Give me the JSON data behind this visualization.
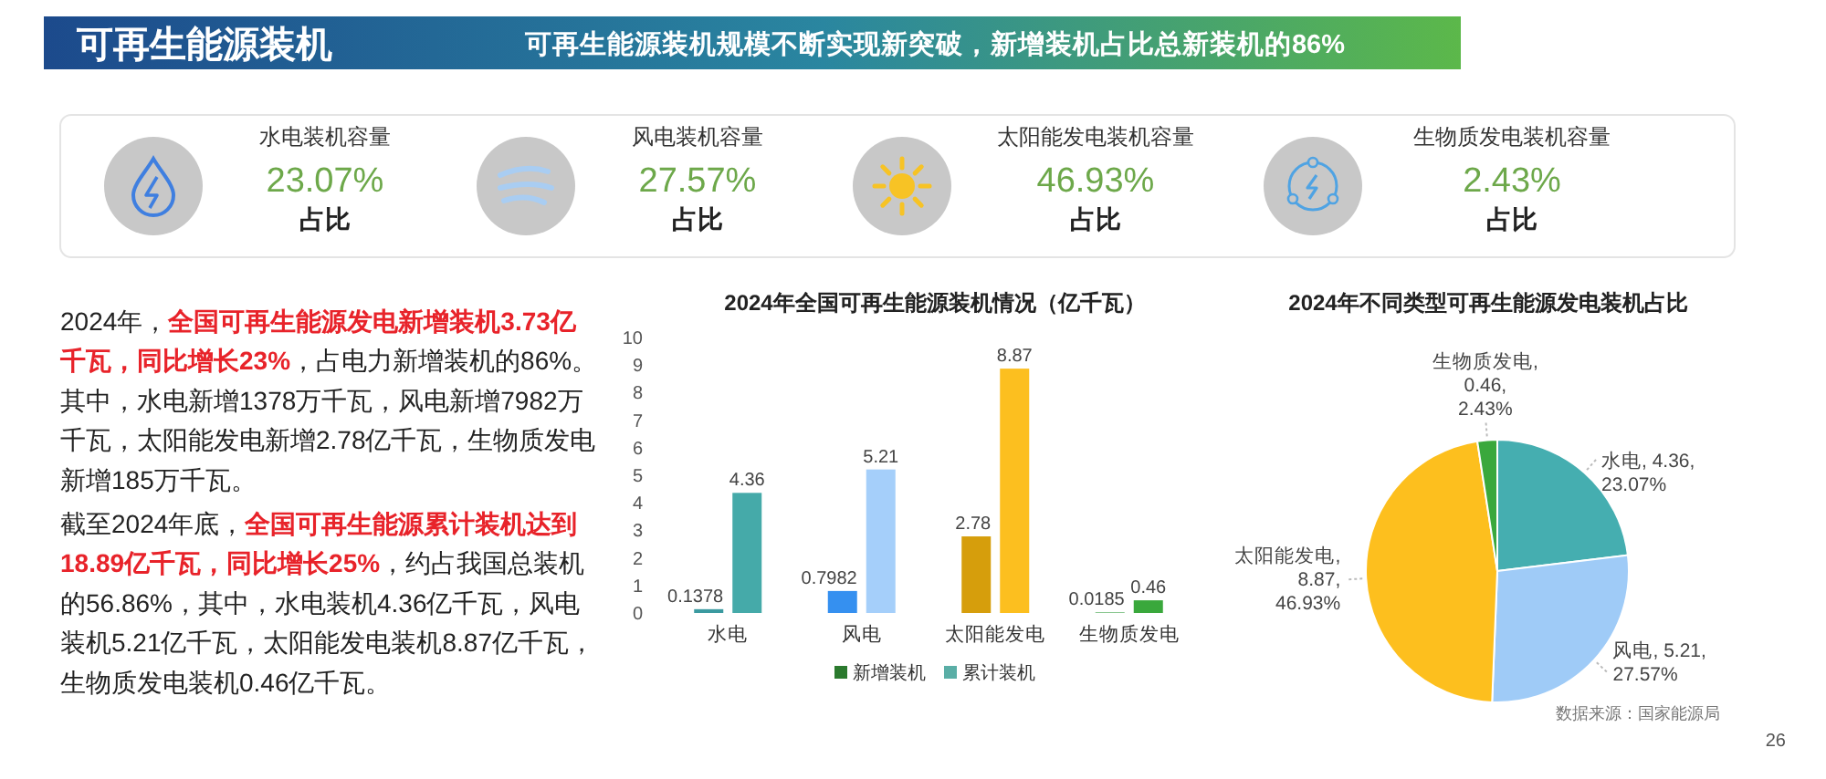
{
  "chart_data": [
    {
      "type": "other",
      "title": "可再生能源装机",
      "subtitle": "可再生能源装机规模不断实现新突破，新增装机占比总新装机的86%"
    },
    {
      "type": "other",
      "title": "水电装机容量",
      "annotations": [
        "23.07%",
        "占比"
      ]
    },
    {
      "type": "other",
      "title": "风电装机容量",
      "annotations": [
        "27.57%",
        "占比"
      ]
    },
    {
      "type": "other",
      "title": "太阳能发电装机容量",
      "annotations": [
        "46.93%",
        "占比"
      ]
    },
    {
      "type": "other",
      "title": "生物质发电装机容量",
      "annotations": [
        "2.43%",
        "占比"
      ]
    },
    {
      "type": "other",
      "annotations": [
        "2024年，",
        "全国可再生能源发电新增装机3.73亿",
        "千瓦，同比增长23%",
        "，占电力新增装机的86%。",
        "其中，水电新增1378万千瓦，风电新增7982万",
        "千瓦，太阳能发电新增2.78亿千瓦，生物质发电",
        "新增185万千瓦。"
      ],
      "colors": [
        "#222222",
        "#e8232a",
        "#e8232a",
        "#222222",
        "#222222",
        "#222222",
        "#222222"
      ]
    },
    {
      "type": "other",
      "annotations": [
        "截至2024年底，",
        "全国可再生能源累计装机达到",
        "18.89亿千瓦，同比增长25%",
        "，约占我国总装机",
        "的56.86%，其中，水电装机4.36亿千瓦，风电",
        "装机5.21亿千瓦，太阳能发电装机8.87亿千瓦，",
        "生物质发电装机0.46亿千瓦。"
      ],
      "colors": [
        "#222222",
        "#e8232a",
        "#e8232a",
        "#222222",
        "#222222",
        "#222222",
        "#222222"
      ]
    },
    {
      "type": "bar",
      "title": "2024年全国可再生能源装机情况（亿千瓦）",
      "categories": [
        "水电",
        "风电",
        "太阳能发电",
        "生物质发电"
      ],
      "series": [
        {
          "name": "新增装机",
          "color": "#2b7a2e",
          "colors": [
            "#3b9aa0",
            "#3590f0",
            "#d69e0c",
            "#2e9b3a"
          ],
          "values": [
            0.1378,
            0.7982,
            2.78,
            0.0185
          ]
        },
        {
          "name": "累计装机",
          "color": "#5aaea6",
          "colors": [
            "#45aaa9",
            "#a5cffa",
            "#fcbf1f",
            "#3aa83c"
          ],
          "values": [
            4.36,
            5.21,
            8.87,
            0.46
          ]
        }
      ],
      "ylim": [
        0,
        10
      ],
      "yticks": [
        0,
        1,
        2,
        3,
        4,
        5,
        6,
        7,
        8,
        9,
        10
      ],
      "data_labels": true,
      "legend": "bottom"
    },
    {
      "type": "pie",
      "title": "2024年不同类型可再生能源发电装机占比",
      "categories": [
        "水电",
        "风电",
        "太阳能发电",
        "生物质发电"
      ],
      "values": [
        4.36,
        5.21,
        8.87,
        0.46
      ],
      "value_labels": [
        ", 4.36, 23.07%",
        ", 5.21, 27.57%",
        ", 8.87, 46.93%",
        ", 0.46, 2.43%"
      ],
      "colors": [
        "#45aeb0",
        "#9fcbf7",
        "#fdbf1e",
        "#3aa83c"
      ],
      "annotations": [
        "数据来源：国家能源局",
        "26"
      ]
    }
  ]
}
